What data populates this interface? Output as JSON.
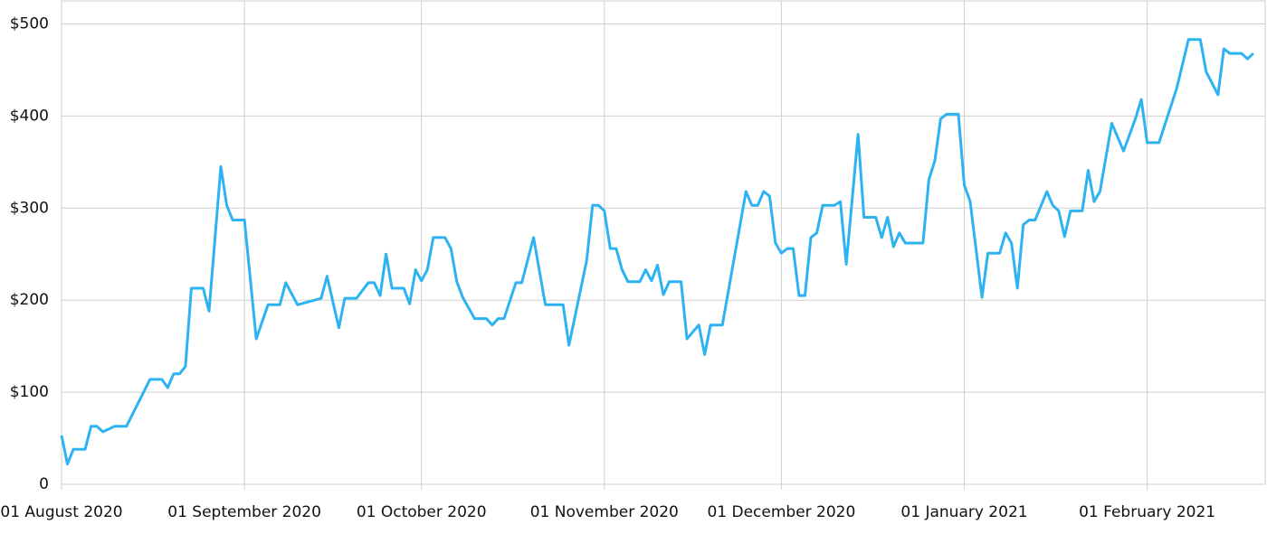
{
  "chart_data": {
    "type": "line",
    "x": [
      "2020-08-01",
      "2020-08-02",
      "2020-08-03",
      "2020-08-05",
      "2020-08-06",
      "2020-08-07",
      "2020-08-08",
      "2020-08-10",
      "2020-08-12",
      "2020-08-16",
      "2020-08-18",
      "2020-08-19",
      "2020-08-20",
      "2020-08-21",
      "2020-08-22",
      "2020-08-23",
      "2020-08-25",
      "2020-08-26",
      "2020-08-28",
      "2020-08-29",
      "2020-08-30",
      "2020-09-01",
      "2020-09-03",
      "2020-09-05",
      "2020-09-07",
      "2020-09-08",
      "2020-09-10",
      "2020-09-14",
      "2020-09-15",
      "2020-09-17",
      "2020-09-18",
      "2020-09-20",
      "2020-09-22",
      "2020-09-23",
      "2020-09-24",
      "2020-09-25",
      "2020-09-26",
      "2020-09-28",
      "2020-09-29",
      "2020-09-30",
      "2020-10-01",
      "2020-10-02",
      "2020-10-03",
      "2020-10-05",
      "2020-10-06",
      "2020-10-07",
      "2020-10-08",
      "2020-10-10",
      "2020-10-12",
      "2020-10-13",
      "2020-10-14",
      "2020-10-15",
      "2020-10-17",
      "2020-10-18",
      "2020-10-20",
      "2020-10-22",
      "2020-10-25",
      "2020-10-26",
      "2020-10-29",
      "2020-10-30",
      "2020-10-31",
      "2020-11-01",
      "2020-11-02",
      "2020-11-03",
      "2020-11-04",
      "2020-11-05",
      "2020-11-07",
      "2020-11-08",
      "2020-11-09",
      "2020-11-10",
      "2020-11-11",
      "2020-11-12",
      "2020-11-14",
      "2020-11-15",
      "2020-11-17",
      "2020-11-18",
      "2020-11-19",
      "2020-11-21",
      "2020-11-25",
      "2020-11-26",
      "2020-11-27",
      "2020-11-28",
      "2020-11-29",
      "2020-11-30",
      "2020-12-01",
      "2020-12-02",
      "2020-12-03",
      "2020-12-04",
      "2020-12-05",
      "2020-12-06",
      "2020-12-07",
      "2020-12-08",
      "2020-12-10",
      "2020-12-11",
      "2020-12-12",
      "2020-12-14",
      "2020-12-15",
      "2020-12-17",
      "2020-12-18",
      "2020-12-19",
      "2020-12-20",
      "2020-12-21",
      "2020-12-22",
      "2020-12-25",
      "2020-12-26",
      "2020-12-27",
      "2020-12-28",
      "2020-12-29",
      "2020-12-31",
      "2021-01-01",
      "2021-01-02",
      "2021-01-04",
      "2021-01-05",
      "2021-01-07",
      "2021-01-08",
      "2021-01-09",
      "2021-01-10",
      "2021-01-11",
      "2021-01-12",
      "2021-01-13",
      "2021-01-15",
      "2021-01-16",
      "2021-01-17",
      "2021-01-18",
      "2021-01-19",
      "2021-01-21",
      "2021-01-22",
      "2021-01-23",
      "2021-01-24",
      "2021-01-26",
      "2021-01-28",
      "2021-01-30",
      "2021-01-31",
      "2021-02-01",
      "2021-02-03",
      "2021-02-06",
      "2021-02-08",
      "2021-02-10",
      "2021-02-11",
      "2021-02-13",
      "2021-02-14",
      "2021-02-15",
      "2021-02-17",
      "2021-02-18",
      "2021-02-19"
    ],
    "series": [
      {
        "color": "#2db2f2",
        "values": [
          53,
          22,
          38,
          38,
          63,
          63,
          57,
          63,
          63,
          114,
          114,
          105,
          120,
          120,
          128,
          213,
          213,
          188,
          345,
          303,
          287,
          287,
          158,
          195,
          195,
          219,
          195,
          202,
          226,
          170,
          202,
          202,
          219,
          219,
          205,
          250,
          213,
          213,
          196,
          233,
          221,
          233,
          268,
          268,
          256,
          220,
          203,
          180,
          180,
          173,
          180,
          180,
          219,
          219,
          268,
          195,
          195,
          151,
          243,
          303,
          303,
          297,
          256,
          256,
          233,
          220,
          220,
          233,
          221,
          238,
          206,
          220,
          220,
          158,
          173,
          141,
          173,
          173,
          318,
          303,
          303,
          318,
          313,
          262,
          251,
          256,
          256,
          205,
          205,
          268,
          273,
          303,
          303,
          307,
          239,
          380,
          290,
          290,
          268,
          290,
          258,
          273,
          262,
          262,
          331,
          351,
          397,
          402,
          402,
          325,
          307,
          203,
          251,
          251,
          273,
          262,
          213,
          282,
          287,
          287,
          318,
          303,
          297,
          269,
          297,
          297,
          341,
          307,
          318,
          392,
          362,
          397,
          418,
          371,
          371,
          430,
          483,
          483,
          448,
          423,
          473,
          468,
          468,
          462,
          468
        ]
      }
    ],
    "xlim": [
      "2020-08-01",
      "2021-02-21"
    ],
    "xticks": [
      {
        "value": "2020-08-01",
        "label": "01 August 2020"
      },
      {
        "value": "2020-09-01",
        "label": "01 September 2020"
      },
      {
        "value": "2020-10-01",
        "label": "01 October 2020"
      },
      {
        "value": "2020-11-01",
        "label": "01 November 2020"
      },
      {
        "value": "2020-12-01",
        "label": "01 December 2020"
      },
      {
        "value": "2021-01-01",
        "label": "01 January 2021"
      },
      {
        "value": "2021-02-01",
        "label": "01 February 2021"
      }
    ],
    "ylim": [
      0,
      525
    ],
    "yticks": [
      0,
      {
        "value": 100,
        "label": "$100"
      },
      {
        "value": 200,
        "label": "$200"
      },
      {
        "value": 300,
        "label": "$300"
      },
      {
        "value": 400,
        "label": "$400"
      },
      {
        "value": 500,
        "label": "$500"
      }
    ],
    "grid": true
  }
}
